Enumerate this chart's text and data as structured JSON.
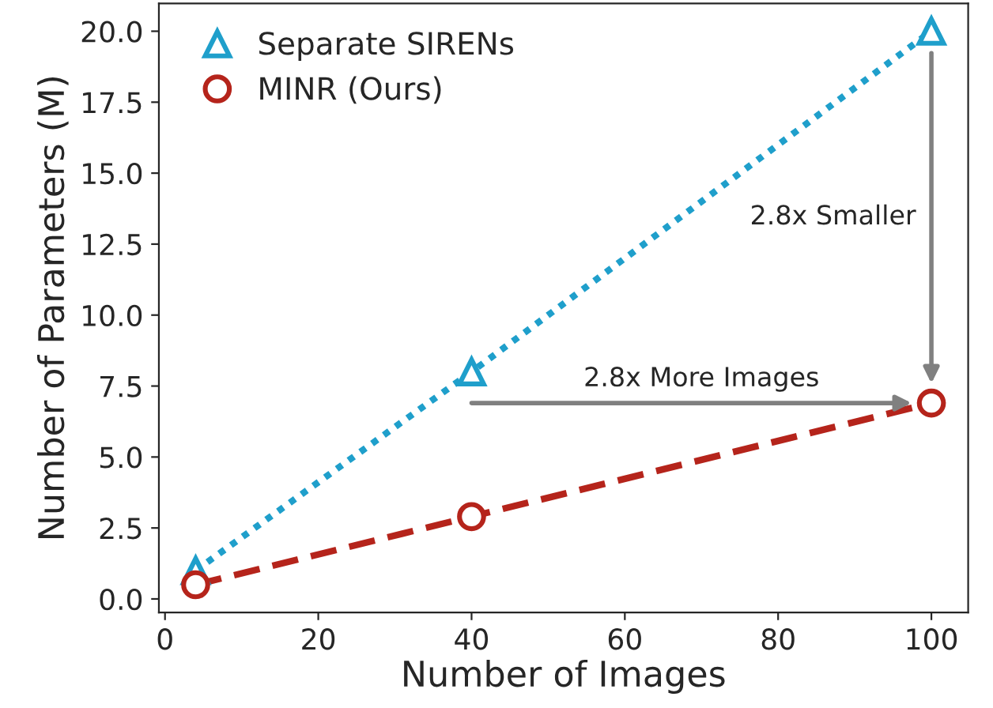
{
  "chart_data": {
    "type": "line",
    "xlabel": "Number of Images",
    "ylabel": "Number of Parameters (M)",
    "xlim": [
      -0.8,
      104.8
    ],
    "xticks": [
      0,
      20,
      40,
      60,
      80,
      100
    ],
    "ylim": [
      -0.475,
      20.975
    ],
    "yticks": [
      {
        "value": 0,
        "label": "0.0"
      },
      {
        "value": 2.5,
        "label": "2.5"
      },
      {
        "value": 5,
        "label": "5.0"
      },
      {
        "value": 7.5,
        "label": "7.5"
      },
      {
        "value": 10,
        "label": "10.0"
      },
      {
        "value": 12.5,
        "label": "12.5"
      },
      {
        "value": 15,
        "label": "15.0"
      },
      {
        "value": 17.5,
        "label": "17.5"
      },
      {
        "value": 20,
        "label": "20.0"
      }
    ],
    "x": [
      4,
      40,
      100
    ],
    "series": [
      {
        "name": "Separate SIRENs",
        "color": "#1f9fcb",
        "values": [
          1.0,
          8.0,
          20.0
        ],
        "marker": "triangle",
        "line_style": "dotted"
      },
      {
        "name": "MINR (Ours)",
        "color": "#b5241b",
        "values": [
          0.5,
          2.9,
          6.9
        ],
        "marker": "circle",
        "line_style": "dashed"
      }
    ],
    "annotations": [
      "2.8x More Images",
      "2.8x Smaller"
    ],
    "legend": "top left",
    "grid": false
  }
}
